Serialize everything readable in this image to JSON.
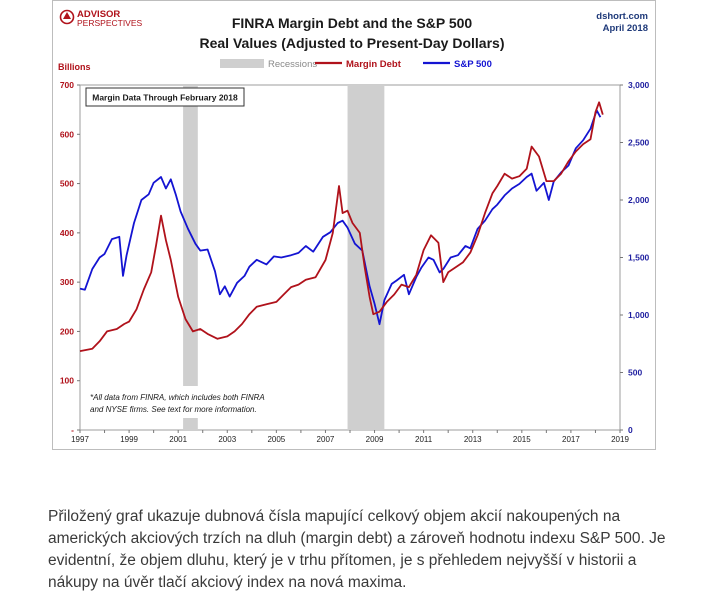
{
  "chart_data": {
    "type": "line",
    "title_line1": "FINRA Margin Debt and the S&P 500",
    "title_line2": "Real Values (Adjusted to Present-Day Dollars)",
    "source": "dshort.com",
    "date": "April 2018",
    "logo_top": "ADVISOR",
    "logo_bottom": "PERSPECTIVES",
    "left_unit": "Billions",
    "legend": {
      "recessions": "Recessions",
      "margin": "Margin Debt",
      "sp500": "S&P 500"
    },
    "colors": {
      "margin": "#b0121b",
      "sp500": "#1414d2",
      "recession": "#cfcfcf",
      "axis_left": "#b0121b",
      "axis_right": "#1f1fa0",
      "title": "#1a1a1a"
    },
    "inset_label": "Margin Data Through February 2018",
    "note_line1": "*All data from FINRA, which includes both FINRA",
    "note_line2": "and NYSE firms. See text for more information.",
    "x_ticks": [
      "1997",
      "1999",
      "2001",
      "2003",
      "2005",
      "2007",
      "2009",
      "2011",
      "2013",
      "2015",
      "2017",
      "2019"
    ],
    "x_range": [
      1997,
      2019
    ],
    "y_left": {
      "range": [
        0,
        700
      ],
      "ticks": [
        "-",
        "100",
        "200",
        "300",
        "400",
        "500",
        "600",
        "700"
      ]
    },
    "y_right": {
      "range": [
        0,
        3000
      ],
      "ticks": [
        "0",
        "500",
        "1,000",
        "1,500",
        "2,000",
        "2,500",
        "3,000"
      ]
    },
    "recessions": [
      [
        2001.2,
        2001.8
      ],
      [
        2007.9,
        2009.4
      ]
    ],
    "series": [
      {
        "name": "Margin Debt",
        "axis": "left",
        "points": [
          [
            1997.0,
            160
          ],
          [
            1997.5,
            165
          ],
          [
            1997.8,
            180
          ],
          [
            1998.1,
            200
          ],
          [
            1998.5,
            205
          ],
          [
            1998.8,
            215
          ],
          [
            1999.0,
            220
          ],
          [
            1999.3,
            245
          ],
          [
            1999.6,
            285
          ],
          [
            1999.9,
            320
          ],
          [
            2000.1,
            375
          ],
          [
            2000.3,
            435
          ],
          [
            2000.5,
            385
          ],
          [
            2000.7,
            345
          ],
          [
            2001.0,
            270
          ],
          [
            2001.3,
            225
          ],
          [
            2001.6,
            200
          ],
          [
            2001.9,
            205
          ],
          [
            2002.2,
            195
          ],
          [
            2002.6,
            185
          ],
          [
            2003.0,
            190
          ],
          [
            2003.3,
            200
          ],
          [
            2003.6,
            215
          ],
          [
            2003.9,
            235
          ],
          [
            2004.2,
            250
          ],
          [
            2004.6,
            255
          ],
          [
            2005.0,
            260
          ],
          [
            2005.3,
            275
          ],
          [
            2005.6,
            290
          ],
          [
            2005.9,
            295
          ],
          [
            2006.2,
            305
          ],
          [
            2006.6,
            310
          ],
          [
            2007.0,
            345
          ],
          [
            2007.3,
            400
          ],
          [
            2007.55,
            495
          ],
          [
            2007.7,
            440
          ],
          [
            2007.9,
            445
          ],
          [
            2008.1,
            420
          ],
          [
            2008.4,
            400
          ],
          [
            2008.6,
            330
          ],
          [
            2008.8,
            270
          ],
          [
            2008.95,
            235
          ],
          [
            2009.2,
            240
          ],
          [
            2009.5,
            260
          ],
          [
            2009.8,
            275
          ],
          [
            2010.1,
            295
          ],
          [
            2010.4,
            290
          ],
          [
            2010.7,
            315
          ],
          [
            2011.0,
            365
          ],
          [
            2011.3,
            395
          ],
          [
            2011.6,
            380
          ],
          [
            2011.8,
            300
          ],
          [
            2012.0,
            320
          ],
          [
            2012.3,
            330
          ],
          [
            2012.6,
            340
          ],
          [
            2012.9,
            360
          ],
          [
            2013.2,
            395
          ],
          [
            2013.5,
            440
          ],
          [
            2013.8,
            480
          ],
          [
            2014.0,
            495
          ],
          [
            2014.3,
            520
          ],
          [
            2014.6,
            510
          ],
          [
            2014.9,
            515
          ],
          [
            2015.2,
            530
          ],
          [
            2015.4,
            575
          ],
          [
            2015.7,
            555
          ],
          [
            2016.0,
            505
          ],
          [
            2016.3,
            505
          ],
          [
            2016.6,
            520
          ],
          [
            2016.9,
            545
          ],
          [
            2017.2,
            565
          ],
          [
            2017.5,
            580
          ],
          [
            2017.8,
            590
          ],
          [
            2018.0,
            645
          ],
          [
            2018.15,
            665
          ],
          [
            2018.3,
            640
          ]
        ]
      },
      {
        "name": "S&P 500",
        "axis": "right",
        "points": [
          [
            1997.0,
            1230
          ],
          [
            1997.2,
            1220
          ],
          [
            1997.5,
            1400
          ],
          [
            1997.8,
            1500
          ],
          [
            1998.0,
            1530
          ],
          [
            1998.3,
            1660
          ],
          [
            1998.6,
            1680
          ],
          [
            1998.75,
            1340
          ],
          [
            1998.9,
            1520
          ],
          [
            1999.2,
            1800
          ],
          [
            1999.5,
            2000
          ],
          [
            1999.8,
            2050
          ],
          [
            2000.0,
            2150
          ],
          [
            2000.3,
            2200
          ],
          [
            2000.5,
            2100
          ],
          [
            2000.7,
            2180
          ],
          [
            2000.9,
            2050
          ],
          [
            2001.1,
            1900
          ],
          [
            2001.4,
            1750
          ],
          [
            2001.7,
            1620
          ],
          [
            2001.9,
            1560
          ],
          [
            2002.2,
            1570
          ],
          [
            2002.5,
            1380
          ],
          [
            2002.7,
            1180
          ],
          [
            2002.9,
            1250
          ],
          [
            2003.1,
            1160
          ],
          [
            2003.4,
            1280
          ],
          [
            2003.7,
            1340
          ],
          [
            2003.9,
            1420
          ],
          [
            2004.2,
            1480
          ],
          [
            2004.6,
            1440
          ],
          [
            2004.9,
            1510
          ],
          [
            2005.2,
            1500
          ],
          [
            2005.6,
            1520
          ],
          [
            2005.9,
            1540
          ],
          [
            2006.2,
            1600
          ],
          [
            2006.5,
            1550
          ],
          [
            2006.9,
            1680
          ],
          [
            2007.2,
            1720
          ],
          [
            2007.5,
            1800
          ],
          [
            2007.7,
            1820
          ],
          [
            2007.9,
            1760
          ],
          [
            2008.2,
            1620
          ],
          [
            2008.5,
            1560
          ],
          [
            2008.8,
            1250
          ],
          [
            2009.0,
            1100
          ],
          [
            2009.2,
            920
          ],
          [
            2009.4,
            1130
          ],
          [
            2009.7,
            1270
          ],
          [
            2009.9,
            1300
          ],
          [
            2010.2,
            1350
          ],
          [
            2010.4,
            1180
          ],
          [
            2010.7,
            1330
          ],
          [
            2010.9,
            1410
          ],
          [
            2011.2,
            1500
          ],
          [
            2011.4,
            1480
          ],
          [
            2011.65,
            1370
          ],
          [
            2011.8,
            1400
          ],
          [
            2012.1,
            1500
          ],
          [
            2012.4,
            1520
          ],
          [
            2012.7,
            1600
          ],
          [
            2012.9,
            1580
          ],
          [
            2013.2,
            1750
          ],
          [
            2013.5,
            1820
          ],
          [
            2013.8,
            1920
          ],
          [
            2014.0,
            1960
          ],
          [
            2014.3,
            2040
          ],
          [
            2014.6,
            2100
          ],
          [
            2014.9,
            2140
          ],
          [
            2015.2,
            2200
          ],
          [
            2015.4,
            2230
          ],
          [
            2015.6,
            2080
          ],
          [
            2015.9,
            2150
          ],
          [
            2016.1,
            2000
          ],
          [
            2016.3,
            2160
          ],
          [
            2016.6,
            2240
          ],
          [
            2016.9,
            2300
          ],
          [
            2017.2,
            2450
          ],
          [
            2017.5,
            2520
          ],
          [
            2017.8,
            2620
          ],
          [
            2018.05,
            2780
          ],
          [
            2018.2,
            2720
          ]
        ]
      }
    ]
  },
  "caption": "Přiložený graf ukazuje dubnová čísla mapující celkový objem akcií nakoupených na amerických akciových trzích na dluh (margin debt) a zároveň hodnotu indexu S&P 500.  Je evidentní, že objem dluhu, který je v trhu přítomen, je s přehledem nejvyšší v historii a nákupy na úvěr tlačí akciový index na nová maxima."
}
